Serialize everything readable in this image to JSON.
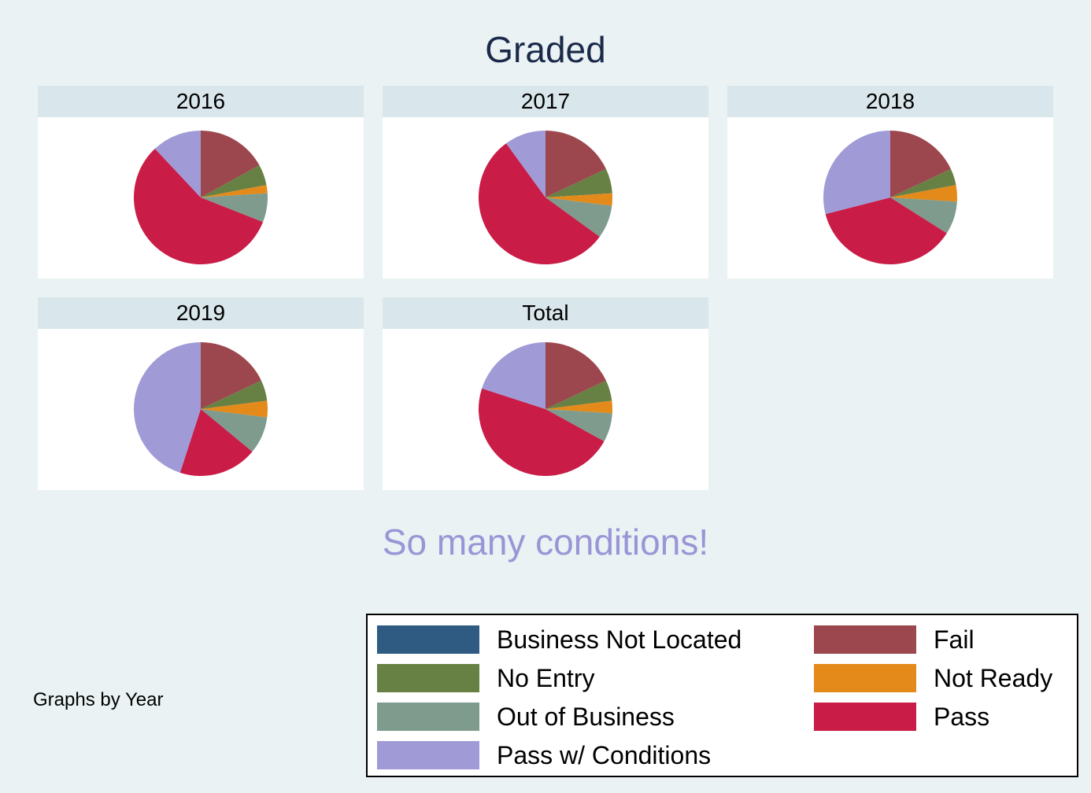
{
  "title": "Graded",
  "subtitle": "So many conditions!",
  "note": "Graphs by Year",
  "chart_data": {
    "type": "pie",
    "categories": [
      "Fail",
      "No Entry",
      "Not Ready",
      "Out of Business",
      "Pass",
      "Pass w/ Conditions",
      "Business Not Located"
    ],
    "colors": {
      "Business Not Located": "#2f5b82",
      "Fail": "#9c474d",
      "No Entry": "#678044",
      "Not Ready": "#e38a1a",
      "Out of Business": "#7e9b8e",
      "Pass": "#c91c46",
      "Pass w/ Conditions": "#a09bd6"
    },
    "panels": [
      {
        "label": "2016",
        "values": [
          17,
          5,
          2,
          7,
          57,
          12,
          0
        ]
      },
      {
        "label": "2017",
        "values": [
          18,
          6,
          3,
          8,
          55,
          10,
          0
        ]
      },
      {
        "label": "2018",
        "values": [
          18,
          4,
          4,
          8,
          37,
          29,
          0
        ]
      },
      {
        "label": "2019",
        "values": [
          18,
          5,
          4,
          9,
          19,
          45,
          0
        ]
      },
      {
        "label": "Total",
        "values": [
          18,
          5,
          3,
          7,
          47,
          20,
          0
        ]
      }
    ],
    "legend": {
      "position": "bottom-right",
      "items": [
        "Business Not Located",
        "Fail",
        "No Entry",
        "Not Ready",
        "Out of Business",
        "Pass",
        "Pass w/ Conditions"
      ]
    }
  }
}
